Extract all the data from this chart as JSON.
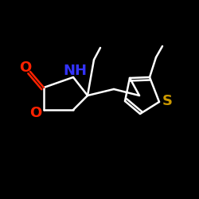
{
  "bg_color": "#000000",
  "bond_color": "#ffffff",
  "N_color": "#3333ff",
  "O_color": "#ff2200",
  "S_color": "#cc9900",
  "bond_width": 1.8,
  "figsize": [
    2.5,
    2.5
  ],
  "dpi": 100,
  "xlim": [
    0,
    250
  ],
  "ylim": [
    0,
    250
  ]
}
